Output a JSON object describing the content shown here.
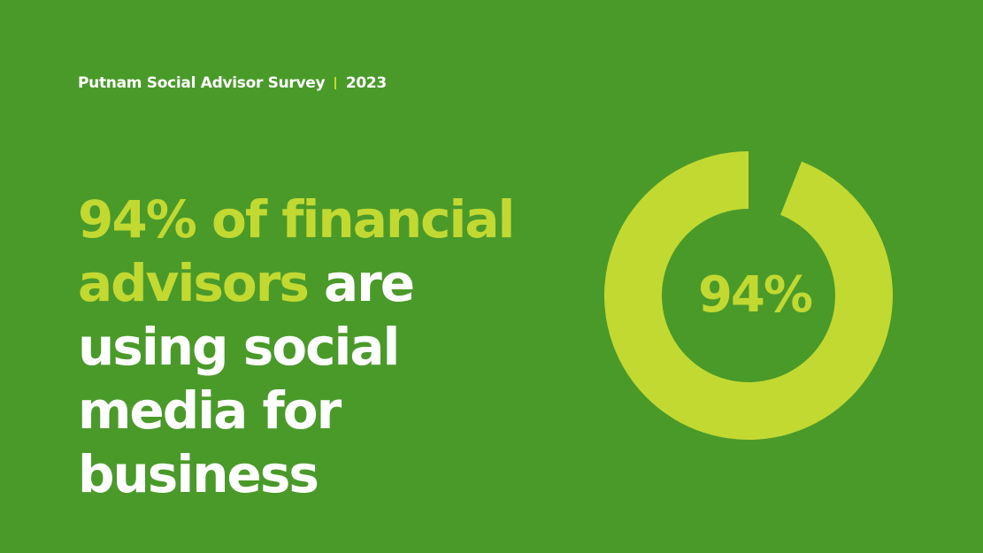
{
  "header": {
    "survey": "Putnam Social Advisor Survey",
    "year": "2023"
  },
  "headline": {
    "highlight": "94% of financial advisors",
    "rest": "are using social media for business"
  },
  "colors": {
    "background": "#4a9a2a",
    "accent": "#c2d932",
    "text": "#ffffff"
  },
  "chart_data": {
    "type": "pie",
    "variant": "donut",
    "values": [
      94,
      6
    ],
    "center_label": "94%",
    "colors": [
      "#c2d932",
      "#4a9a2a"
    ]
  }
}
